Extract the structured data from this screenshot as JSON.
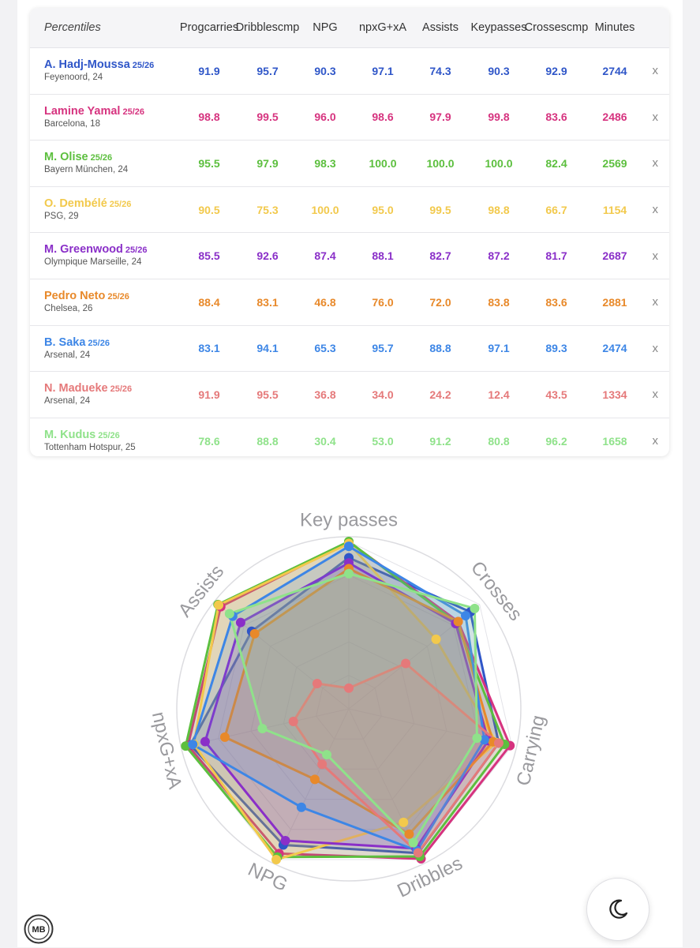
{
  "table": {
    "headers": [
      "Percentiles",
      "Prog carries",
      "Dribbles cmp",
      "NPG",
      "npxG +xA",
      "Assists",
      "Key passes",
      "Crosses cmp",
      "Minutes"
    ],
    "header_lines": [
      [
        "Percentiles"
      ],
      [
        "Prog",
        "carries"
      ],
      [
        "Dribbles",
        "cmp"
      ],
      [
        "NPG"
      ],
      [
        "npxG",
        "+xA"
      ],
      [
        "Assists"
      ],
      [
        "Key",
        "passes"
      ],
      [
        "Crosses",
        "cmp"
      ],
      [
        "Minutes"
      ]
    ],
    "remove_label": "x",
    "rows": [
      {
        "name": "A. Hadj-Moussa",
        "season": "25/26",
        "team": "Feyenoord, 24",
        "color": "#2f56c8",
        "values": [
          "91.9",
          "95.7",
          "90.3",
          "97.1",
          "74.3",
          "90.3",
          "92.9",
          "2744"
        ]
      },
      {
        "name": "Lamine Yamal",
        "season": "25/26",
        "team": "Barcelona, 18",
        "color": "#d6337f",
        "values": [
          "98.8",
          "99.5",
          "96.0",
          "98.6",
          "97.9",
          "99.8",
          "83.6",
          "2486"
        ]
      },
      {
        "name": "M. Olise",
        "season": "25/26",
        "team": "Bayern München, 24",
        "color": "#5cbf3e",
        "values": [
          "95.5",
          "97.9",
          "98.3",
          "100.0",
          "100.0",
          "100.0",
          "82.4",
          "2569"
        ]
      },
      {
        "name": "O. Dembélé",
        "season": "25/26",
        "team": "PSG, 29",
        "color": "#f2c94c",
        "values": [
          "90.5",
          "75.3",
          "100.0",
          "95.0",
          "99.5",
          "98.8",
          "66.7",
          "1154"
        ]
      },
      {
        "name": "M. Greenwood",
        "season": "25/26",
        "team": "Olympique Marseille, 24",
        "color": "#8a2fc8",
        "values": [
          "85.5",
          "92.6",
          "87.4",
          "88.1",
          "82.7",
          "87.2",
          "81.7",
          "2687"
        ]
      },
      {
        "name": "Pedro Neto",
        "season": "25/26",
        "team": "Chelsea, 26",
        "color": "#e8892a",
        "values": [
          "88.4",
          "83.1",
          "46.8",
          "76.0",
          "72.0",
          "83.8",
          "83.6",
          "2881"
        ]
      },
      {
        "name": "B. Saka",
        "season": "25/26",
        "team": "Arsenal, 24",
        "color": "#3d86e6",
        "values": [
          "83.1",
          "94.1",
          "65.3",
          "95.7",
          "88.8",
          "97.1",
          "89.3",
          "2474"
        ]
      },
      {
        "name": "N. Madueke",
        "season": "25/26",
        "team": "Arsenal, 24",
        "color": "#e5797a",
        "values": [
          "91.9",
          "95.5",
          "36.8",
          "34.0",
          "24.2",
          "12.4",
          "43.5",
          "1334"
        ]
      },
      {
        "name": "M. Kudus",
        "season": "25/26",
        "team": "Tottenham Hotspur, 25",
        "color": "#8fe28a",
        "values": [
          "78.6",
          "88.8",
          "30.4",
          "53.0",
          "91.2",
          "80.8",
          "96.2",
          "1658"
        ]
      }
    ]
  },
  "chart_data": {
    "type": "radar",
    "axes": [
      "Key passes",
      "Crosses",
      "Carrying",
      "Dribbles",
      "NPG",
      "npxG+xA",
      "Assists"
    ],
    "range": [
      0,
      100
    ],
    "grid": true,
    "series": [
      {
        "name": "A. Hadj-Moussa",
        "color": "#2f56c8",
        "values": [
          90.3,
          92.9,
          91.9,
          95.7,
          90.3,
          97.1,
          74.3
        ]
      },
      {
        "name": "Lamine Yamal",
        "color": "#d6337f",
        "values": [
          99.8,
          83.6,
          98.8,
          99.5,
          96.0,
          98.6,
          97.9
        ]
      },
      {
        "name": "M. Olise",
        "color": "#5cbf3e",
        "values": [
          100.0,
          82.4,
          95.5,
          97.9,
          98.3,
          100.0,
          100.0
        ]
      },
      {
        "name": "O. Dembélé",
        "color": "#f2c94c",
        "values": [
          98.8,
          66.7,
          90.5,
          75.3,
          100.0,
          95.0,
          99.5
        ]
      },
      {
        "name": "M. Greenwood",
        "color": "#8a2fc8",
        "values": [
          87.2,
          81.7,
          85.5,
          92.6,
          87.4,
          88.1,
          82.7
        ]
      },
      {
        "name": "Pedro Neto",
        "color": "#e8892a",
        "values": [
          83.8,
          83.6,
          88.4,
          83.1,
          46.8,
          76.0,
          72.0
        ]
      },
      {
        "name": "B. Saka",
        "color": "#3d86e6",
        "values": [
          97.1,
          89.3,
          83.1,
          94.1,
          65.3,
          95.7,
          88.8
        ]
      },
      {
        "name": "N. Madueke",
        "color": "#e5797a",
        "values": [
          12.4,
          43.5,
          91.9,
          95.5,
          36.8,
          34.0,
          24.2
        ]
      },
      {
        "name": "M. Kudus",
        "color": "#8fe28a",
        "values": [
          80.8,
          96.2,
          78.6,
          88.8,
          30.4,
          53.0,
          91.2
        ]
      }
    ]
  },
  "footer": {
    "logo_text": "MB",
    "logo_icon": "mb-logo-icon",
    "theme_icon": "moon-icon"
  }
}
